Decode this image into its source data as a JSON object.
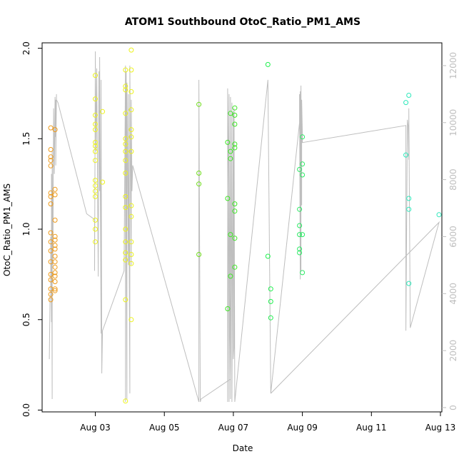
{
  "chart_data": {
    "type": "scatter",
    "title": "ATOM1 Southbound OtoC_Ratio_PM1_AMS",
    "xlabel": "Date",
    "ylabel": "OtoC_Ratio_PM1_AMS",
    "xlim": [
      "2016-08-01T11:00",
      "2016-08-13T01:00"
    ],
    "ylim": [
      -0.01,
      2.03
    ],
    "y2lim": [
      -150,
      12800
    ],
    "x_ticks": [
      {
        "date": "2016-08-03",
        "label": "Aug 03"
      },
      {
        "date": "2016-08-05",
        "label": "Aug 05"
      },
      {
        "date": "2016-08-07",
        "label": "Aug 07"
      },
      {
        "date": "2016-08-09",
        "label": "Aug 09"
      },
      {
        "date": "2016-08-11",
        "label": "Aug 11"
      },
      {
        "date": "2016-08-13",
        "label": "Aug 13"
      }
    ],
    "y_ticks": [
      {
        "value": 0.0,
        "label": "0.0"
      },
      {
        "value": 0.5,
        "label": "0.5"
      },
      {
        "value": 1.0,
        "label": "1.0"
      },
      {
        "value": 1.5,
        "label": "1.5"
      },
      {
        "value": 2.0,
        "label": "2.0"
      }
    ],
    "y2_ticks": [
      {
        "value": 0,
        "label": "0"
      },
      {
        "value": 2000,
        "label": "2000"
      },
      {
        "value": 4000,
        "label": "4000"
      },
      {
        "value": 6000,
        "label": "6000"
      },
      {
        "value": 8000,
        "label": "8000"
      },
      {
        "value": 10000,
        "label": "10000"
      },
      {
        "value": 12000,
        "label": "12000"
      }
    ],
    "grid": false,
    "colors": {
      "axis": "#000000",
      "secondary_axis": "#bebebe",
      "secondary_line": "#bebebe"
    },
    "series": [
      {
        "color": "#ee9a1a",
        "points": [
          [
            "2016-08-01T17:00",
            1.56
          ],
          [
            "2016-08-01T17:00",
            1.44
          ],
          [
            "2016-08-01T17:00",
            1.4
          ],
          [
            "2016-08-01T17:00",
            1.38
          ],
          [
            "2016-08-01T17:00",
            1.35
          ],
          [
            "2016-08-01T17:00",
            1.2
          ],
          [
            "2016-08-01T17:00",
            1.18
          ],
          [
            "2016-08-01T17:00",
            1.14
          ],
          [
            "2016-08-01T17:00",
            0.98
          ],
          [
            "2016-08-01T17:00",
            0.93
          ],
          [
            "2016-08-01T17:00",
            0.88
          ],
          [
            "2016-08-01T17:00",
            0.82
          ],
          [
            "2016-08-01T17:00",
            0.75
          ],
          [
            "2016-08-01T17:00",
            0.72
          ],
          [
            "2016-08-01T17:00",
            0.67
          ],
          [
            "2016-08-01T17:00",
            0.64
          ],
          [
            "2016-08-01T17:00",
            0.61
          ],
          [
            "2016-08-01T20:00",
            1.55
          ],
          [
            "2016-08-01T20:00",
            1.22
          ],
          [
            "2016-08-01T20:00",
            1.19
          ],
          [
            "2016-08-01T20:00",
            1.05
          ],
          [
            "2016-08-01T20:00",
            0.96
          ],
          [
            "2016-08-01T20:00",
            0.94
          ],
          [
            "2016-08-01T20:00",
            0.91
          ],
          [
            "2016-08-01T20:00",
            0.89
          ],
          [
            "2016-08-01T20:00",
            0.85
          ],
          [
            "2016-08-01T20:00",
            0.82
          ],
          [
            "2016-08-01T20:00",
            0.79
          ],
          [
            "2016-08-01T20:00",
            0.76
          ],
          [
            "2016-08-01T20:00",
            0.74
          ],
          [
            "2016-08-01T20:00",
            0.71
          ],
          [
            "2016-08-01T20:00",
            0.67
          ],
          [
            "2016-08-01T20:00",
            0.66
          ]
        ]
      },
      {
        "color": "#ecf21c",
        "points": [
          [
            "2016-08-03T00:00",
            1.85
          ],
          [
            "2016-08-03T00:00",
            1.72
          ],
          [
            "2016-08-03T00:00",
            1.63
          ],
          [
            "2016-08-03T00:00",
            1.58
          ],
          [
            "2016-08-03T00:00",
            1.55
          ],
          [
            "2016-08-03T00:00",
            1.48
          ],
          [
            "2016-08-03T00:00",
            1.46
          ],
          [
            "2016-08-03T00:00",
            1.43
          ],
          [
            "2016-08-03T00:00",
            1.38
          ],
          [
            "2016-08-03T00:00",
            1.27
          ],
          [
            "2016-08-03T00:00",
            1.24
          ],
          [
            "2016-08-03T00:00",
            1.21
          ],
          [
            "2016-08-03T00:00",
            1.18
          ],
          [
            "2016-08-03T00:00",
            1.05
          ],
          [
            "2016-08-03T00:00",
            1.0
          ],
          [
            "2016-08-03T00:00",
            0.93
          ],
          [
            "2016-08-03T05:00",
            1.65
          ],
          [
            "2016-08-03T05:00",
            1.26
          ],
          [
            "2016-08-03T21:00",
            1.88
          ],
          [
            "2016-08-03T21:00",
            1.79
          ],
          [
            "2016-08-03T21:00",
            1.77
          ],
          [
            "2016-08-03T21:00",
            1.64
          ],
          [
            "2016-08-03T21:00",
            1.5
          ],
          [
            "2016-08-03T21:00",
            1.47
          ],
          [
            "2016-08-03T21:00",
            1.43
          ],
          [
            "2016-08-03T21:00",
            1.38
          ],
          [
            "2016-08-03T21:00",
            1.31
          ],
          [
            "2016-08-03T21:00",
            1.18
          ],
          [
            "2016-08-03T21:00",
            1.12
          ],
          [
            "2016-08-03T21:00",
            1.0
          ],
          [
            "2016-08-03T21:00",
            0.93
          ],
          [
            "2016-08-03T21:00",
            0.87
          ],
          [
            "2016-08-03T21:00",
            0.83
          ],
          [
            "2016-08-03T21:00",
            0.61
          ],
          [
            "2016-08-03T21:00",
            0.05
          ],
          [
            "2016-08-04T01:00",
            1.99
          ],
          [
            "2016-08-04T01:00",
            1.88
          ],
          [
            "2016-08-04T01:00",
            1.76
          ],
          [
            "2016-08-04T01:00",
            1.66
          ],
          [
            "2016-08-04T01:00",
            1.55
          ],
          [
            "2016-08-04T01:00",
            1.51
          ],
          [
            "2016-08-04T01:00",
            1.43
          ],
          [
            "2016-08-04T01:00",
            1.13
          ],
          [
            "2016-08-04T01:00",
            1.07
          ],
          [
            "2016-08-04T01:00",
            0.93
          ],
          [
            "2016-08-04T01:00",
            0.86
          ],
          [
            "2016-08-04T01:00",
            0.81
          ],
          [
            "2016-08-04T01:00",
            0.5
          ]
        ]
      },
      {
        "color": "#6fdd1a",
        "points": [
          [
            "2016-08-06T00:00",
            1.69
          ],
          [
            "2016-08-06T00:00",
            1.31
          ],
          [
            "2016-08-06T00:00",
            1.25
          ],
          [
            "2016-08-06T00:00",
            0.86
          ]
        ]
      },
      {
        "color": "#3ee825",
        "points": [
          [
            "2016-08-06T20:00",
            1.48
          ],
          [
            "2016-08-06T20:00",
            1.17
          ],
          [
            "2016-08-06T20:00",
            0.56
          ],
          [
            "2016-08-06T22:00",
            1.64
          ],
          [
            "2016-08-06T22:00",
            1.43
          ],
          [
            "2016-08-06T22:00",
            1.39
          ],
          [
            "2016-08-06T22:00",
            0.97
          ],
          [
            "2016-08-06T22:00",
            0.74
          ],
          [
            "2016-08-07T01:00",
            1.67
          ],
          [
            "2016-08-07T01:00",
            1.63
          ],
          [
            "2016-08-07T01:00",
            1.58
          ],
          [
            "2016-08-07T01:00",
            1.47
          ],
          [
            "2016-08-07T01:00",
            1.45
          ],
          [
            "2016-08-07T01:00",
            1.14
          ],
          [
            "2016-08-07T01:00",
            1.1
          ],
          [
            "2016-08-07T01:00",
            0.95
          ],
          [
            "2016-08-07T01:00",
            0.79
          ]
        ]
      },
      {
        "color": "#1ef04d",
        "points": [
          [
            "2016-08-08T00:00",
            1.91
          ],
          [
            "2016-08-08T00:00",
            0.85
          ],
          [
            "2016-08-08T02:00",
            0.67
          ],
          [
            "2016-08-08T02:00",
            0.6
          ],
          [
            "2016-08-08T02:00",
            0.51
          ]
        ]
      },
      {
        "color": "#2bea64",
        "points": [
          [
            "2016-08-08T22:00",
            1.33
          ],
          [
            "2016-08-08T22:00",
            1.11
          ],
          [
            "2016-08-08T22:00",
            1.02
          ],
          [
            "2016-08-08T22:00",
            0.97
          ],
          [
            "2016-08-08T22:00",
            0.89
          ],
          [
            "2016-08-08T22:00",
            0.87
          ],
          [
            "2016-08-09T00:00",
            1.51
          ],
          [
            "2016-08-09T00:00",
            1.36
          ],
          [
            "2016-08-09T00:00",
            1.3
          ],
          [
            "2016-08-09T00:00",
            0.97
          ],
          [
            "2016-08-09T00:00",
            0.76
          ]
        ]
      },
      {
        "color": "#2ee8bb",
        "points": [
          [
            "2016-08-12T00:00",
            1.7
          ],
          [
            "2016-08-12T00:00",
            1.41
          ],
          [
            "2016-08-12T02:00",
            1.74
          ],
          [
            "2016-08-12T02:00",
            1.17
          ],
          [
            "2016-08-12T02:00",
            1.11
          ],
          [
            "2016-08-12T02:00",
            0.7
          ],
          [
            "2016-08-12T23:00",
            1.08
          ]
        ]
      }
    ],
    "secondary_line": [
      [
        "2016-08-01T16:00",
        1700
      ],
      [
        "2016-08-01T16:30",
        3900
      ],
      [
        "2016-08-01T17:00",
        3900
      ],
      [
        "2016-08-01T17:00",
        6000
      ],
      [
        "2016-08-01T17:30",
        3000
      ],
      [
        "2016-08-01T17:30",
        8200
      ],
      [
        "2016-08-01T18:00",
        300
      ],
      [
        "2016-08-01T18:00",
        9000
      ],
      [
        "2016-08-01T18:30",
        5000
      ],
      [
        "2016-08-01T19:00",
        10500
      ],
      [
        "2016-08-01T19:30",
        8200
      ],
      [
        "2016-08-01T20:00",
        10900
      ],
      [
        "2016-08-01T20:00",
        9500
      ],
      [
        "2016-08-01T20:30",
        10800
      ],
      [
        "2016-08-01T20:30",
        8500
      ],
      [
        "2016-08-01T21:00",
        11000
      ],
      [
        "2016-08-01T21:00",
        10800
      ],
      [
        "2016-08-01T22:00",
        10700
      ],
      [
        "2016-08-02T18:00",
        6800
      ],
      [
        "2016-08-02T23:30",
        6600
      ],
      [
        "2016-08-02T23:30",
        4800
      ],
      [
        "2016-08-03T00:00",
        12000
      ],
      [
        "2016-08-03T00:00",
        12500
      ],
      [
        "2016-08-03T00:30",
        9000
      ],
      [
        "2016-08-03T01:00",
        11900
      ],
      [
        "2016-08-03T02:00",
        4600
      ],
      [
        "2016-08-03T02:30",
        11800
      ],
      [
        "2016-08-03T03:00",
        7600
      ],
      [
        "2016-08-03T03:00",
        12300
      ],
      [
        "2016-08-03T04:00",
        2600
      ],
      [
        "2016-08-03T04:00",
        11500
      ],
      [
        "2016-08-03T04:30",
        1200
      ],
      [
        "2016-08-03T05:00",
        2700
      ],
      [
        "2016-08-03T20:00",
        4800
      ],
      [
        "2016-08-03T21:00",
        12000
      ],
      [
        "2016-08-03T21:00",
        200
      ],
      [
        "2016-08-03T21:30",
        11800
      ],
      [
        "2016-08-03T22:00",
        300
      ],
      [
        "2016-08-03T22:00",
        11400
      ],
      [
        "2016-08-03T23:00",
        5000
      ],
      [
        "2016-08-03T23:00",
        11000
      ],
      [
        "2016-08-04T00:00",
        500
      ],
      [
        "2016-08-04T00:00",
        12000
      ],
      [
        "2016-08-04T01:00",
        5000
      ],
      [
        "2016-08-04T01:00",
        10800
      ],
      [
        "2016-08-04T01:30",
        7600
      ],
      [
        "2016-08-04T02:00",
        8500
      ],
      [
        "2016-08-06T00:00",
        200
      ],
      [
        "2016-08-06T00:00",
        11500
      ],
      [
        "2016-08-06T01:00",
        200
      ],
      [
        "2016-08-06T01:30",
        300
      ],
      [
        "2016-08-06T22:00",
        1000
      ],
      [
        "2016-08-06T20:00",
        11200
      ],
      [
        "2016-08-06T20:00",
        200
      ],
      [
        "2016-08-06T21:00",
        11000
      ],
      [
        "2016-08-06T21:00",
        200
      ],
      [
        "2016-08-06T22:00",
        10900
      ],
      [
        "2016-08-06T22:00",
        300
      ],
      [
        "2016-08-06T23:00",
        10700
      ],
      [
        "2016-08-06T23:00",
        200
      ],
      [
        "2016-08-07T00:00",
        10400
      ],
      [
        "2016-08-07T00:00",
        1700
      ],
      [
        "2016-08-07T00:30",
        2200
      ],
      [
        "2016-08-07T00:30",
        10500
      ],
      [
        "2016-08-07T01:00",
        200
      ],
      [
        "2016-08-08T00:00",
        11500
      ],
      [
        "2016-08-08T02:00",
        500
      ],
      [
        "2016-08-08T22:00",
        10000
      ],
      [
        "2016-08-08T22:00",
        11000
      ],
      [
        "2016-08-08T22:30",
        4500
      ],
      [
        "2016-08-08T22:30",
        11100
      ],
      [
        "2016-08-08T23:00",
        4800
      ],
      [
        "2016-08-08T23:00",
        11300
      ],
      [
        "2016-08-08T23:30",
        7100
      ],
      [
        "2016-08-08T23:30",
        10800
      ],
      [
        "2016-08-09T00:00",
        9600
      ],
      [
        "2016-08-09T00:00",
        9300
      ],
      [
        "2016-08-12T00:00",
        9900
      ],
      [
        "2016-08-12T00:00",
        2700
      ],
      [
        "2016-08-12T01:00",
        10100
      ],
      [
        "2016-08-12T01:30",
        9900
      ],
      [
        "2016-08-12T02:00",
        8700
      ],
      [
        "2016-08-12T02:00",
        10500
      ],
      [
        "2016-08-12T03:00",
        2800
      ],
      [
        "2016-08-12T23:00",
        6500
      ],
      [
        "2016-08-08T02:00",
        500
      ],
      [
        "2016-08-12T23:00",
        6500
      ]
    ]
  }
}
